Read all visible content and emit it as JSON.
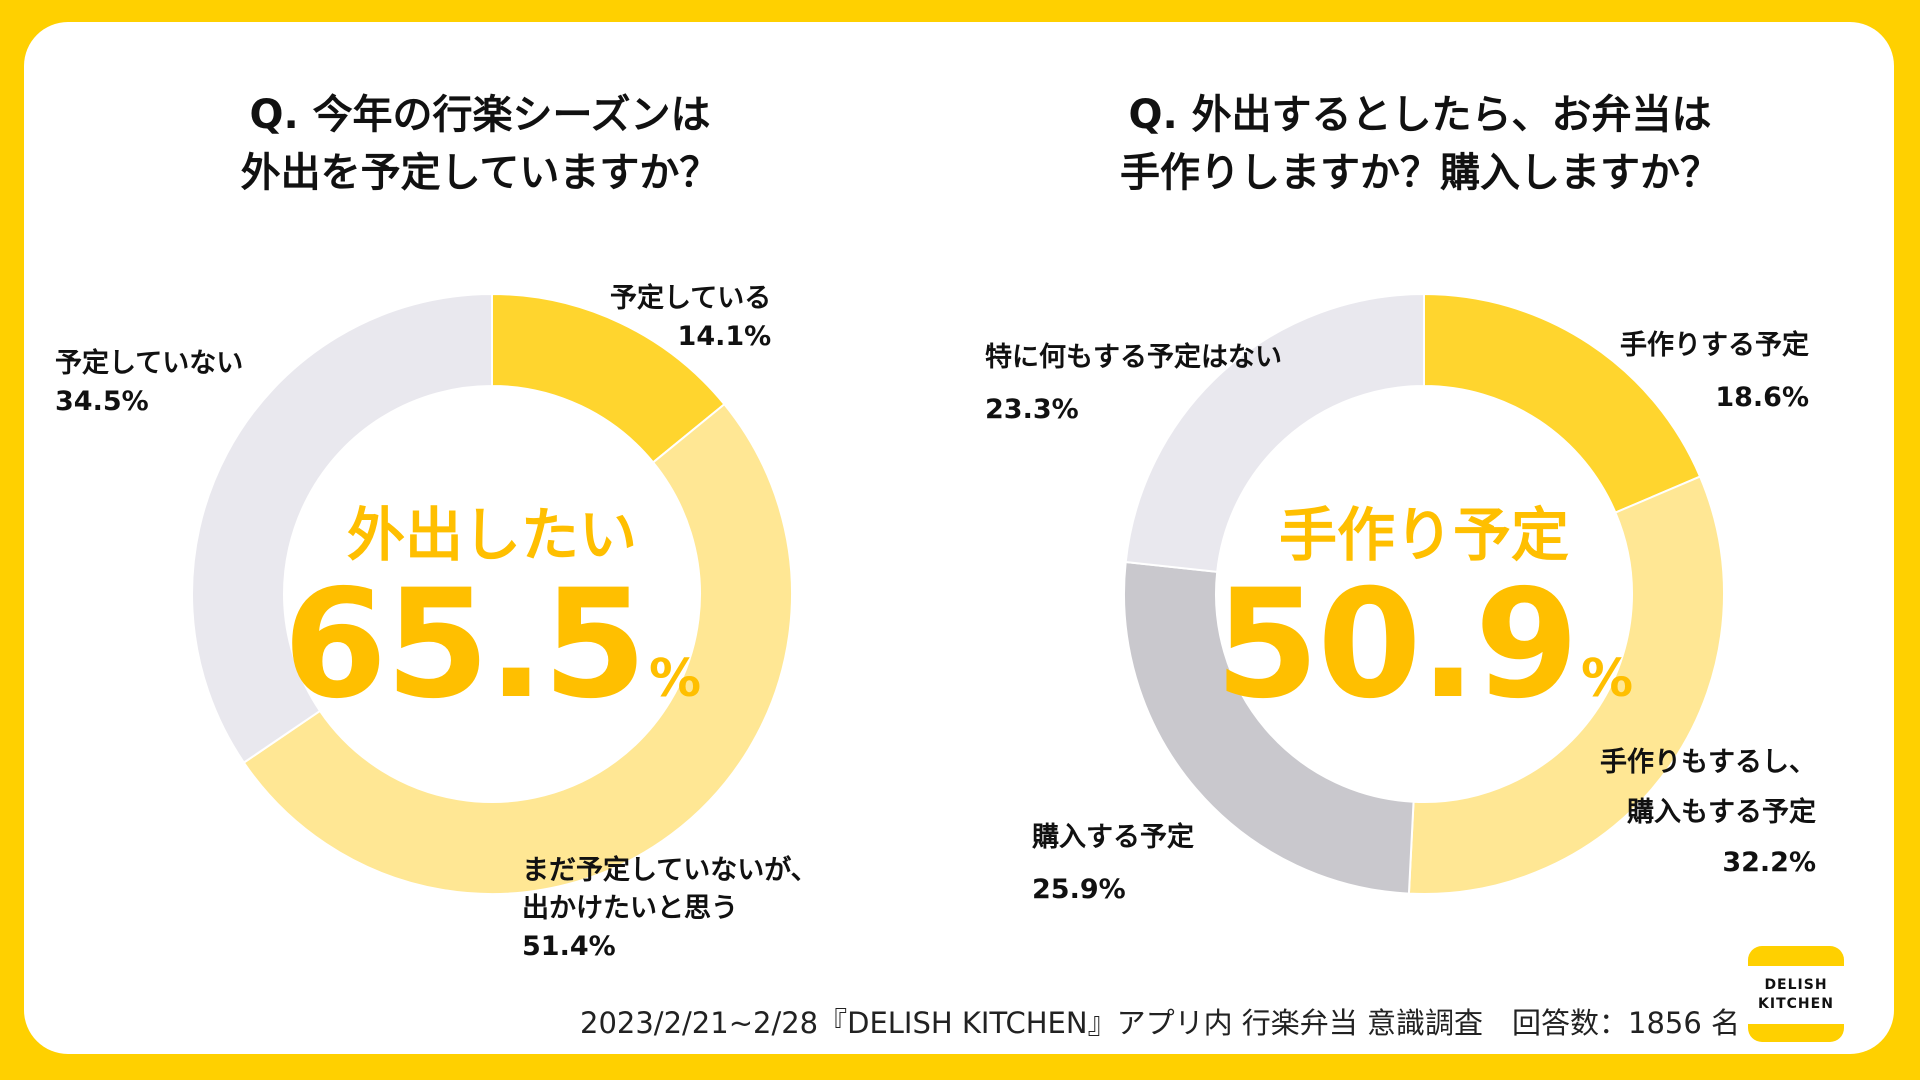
{
  "footer": "2023/2/21~2/28『DELISH KITCHEN』アプリ内 行楽弁当 意識調査　回答数：1856 名",
  "logo": {
    "line1": "DELISH",
    "line2": "KITCHEN"
  },
  "chart_data": [
    {
      "type": "pie",
      "title_lines": [
        "Q. 今年の行楽シーズンは",
        "外出を予定していますか？"
      ],
      "center_caption": "外出したい",
      "center_value": "65.5",
      "center_unit": "%",
      "slices": [
        {
          "label_lines": [
            "予定している",
            "14.1%"
          ],
          "value": 14.1,
          "color": "#FFD52E"
        },
        {
          "label_lines": [
            "まだ予定していないが、",
            "出かけたいと思う",
            "51.4%"
          ],
          "value": 51.4,
          "color": "#FFE794"
        },
        {
          "label_lines": [
            "予定していない",
            "34.5%"
          ],
          "value": 34.5,
          "color": "#E9E8EE"
        }
      ]
    },
    {
      "type": "pie",
      "title_lines": [
        "Q. 外出するとしたら、お弁当は",
        "手作りしますか？購入しますか？"
      ],
      "center_caption": "手作り予定",
      "center_value": "50.9",
      "center_unit": "%",
      "slices": [
        {
          "label_lines": [
            "手作りする予定",
            "18.6%"
          ],
          "value": 18.6,
          "color": "#FFD52E"
        },
        {
          "label_lines": [
            "手作りもするし、",
            "購入もする予定",
            "32.2%"
          ],
          "value": 32.2,
          "color": "#FFE794"
        },
        {
          "label_lines": [
            "購入する予定",
            "25.9%"
          ],
          "value": 25.9,
          "color": "#C9C8CD"
        },
        {
          "label_lines": [
            "特に何もする予定はない",
            "23.3%"
          ],
          "value": 23.3,
          "color": "#E9E8EE"
        }
      ]
    }
  ]
}
